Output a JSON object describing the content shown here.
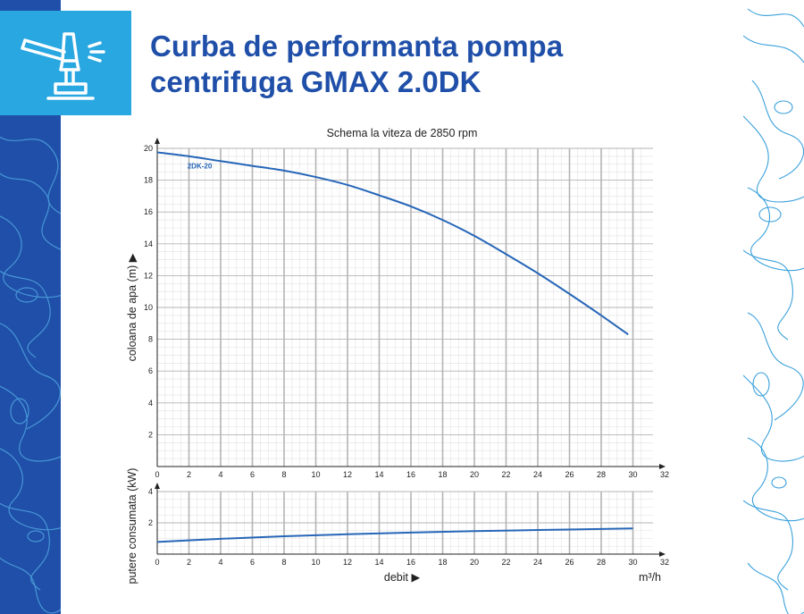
{
  "page": {
    "title_line1": "Curba de performanta pompa",
    "title_line2": "centrifuga GMAX 2.0DK",
    "icon": "sprinkler-icon",
    "colors": {
      "brand_blue": "#1f4fa8",
      "icon_bg": "#29a7e1",
      "curve": "#2666b8",
      "grid_major": "#b4b4b4",
      "grid_minor": "#e2e2e2"
    }
  },
  "chart_data": [
    {
      "type": "line",
      "title": "Schema la viteza de 2850 rpm",
      "xlabel": "",
      "ylabel": "coloana de apa (m) ▶",
      "xlim": [
        0,
        32
      ],
      "ylim": [
        0,
        20
      ],
      "x_ticks": [
        0,
        2,
        4,
        6,
        8,
        10,
        12,
        14,
        16,
        18,
        20,
        22,
        24,
        26,
        28,
        30,
        32
      ],
      "y_ticks": [
        2,
        4,
        6,
        8,
        10,
        12,
        14,
        16,
        18,
        20
      ],
      "grid": true,
      "series": [
        {
          "name": "2DK-20",
          "x": [
            0,
            2,
            4,
            6,
            8,
            10,
            12,
            14,
            16,
            18,
            20,
            22,
            24,
            26,
            28,
            29.7
          ],
          "y": [
            19.75,
            19.5,
            19.2,
            18.9,
            18.6,
            18.2,
            17.7,
            17.05,
            16.35,
            15.5,
            14.5,
            13.35,
            12.15,
            10.85,
            9.5,
            8.3
          ]
        }
      ]
    },
    {
      "type": "line",
      "title": "",
      "xlabel": "debit ▶",
      "x_unit": "m³/h",
      "ylabel": "putere consumata (kW)",
      "xlim": [
        0,
        32
      ],
      "ylim": [
        0,
        4
      ],
      "x_ticks": [
        0,
        2,
        4,
        6,
        8,
        10,
        12,
        14,
        16,
        18,
        20,
        22,
        24,
        26,
        28,
        30,
        32
      ],
      "y_ticks": [
        2,
        4
      ],
      "grid": true,
      "series": [
        {
          "name": "",
          "x": [
            0,
            4,
            8,
            12,
            16,
            20,
            24,
            28,
            30
          ],
          "y": [
            0.78,
            0.98,
            1.14,
            1.27,
            1.38,
            1.47,
            1.54,
            1.61,
            1.64
          ]
        }
      ]
    }
  ]
}
